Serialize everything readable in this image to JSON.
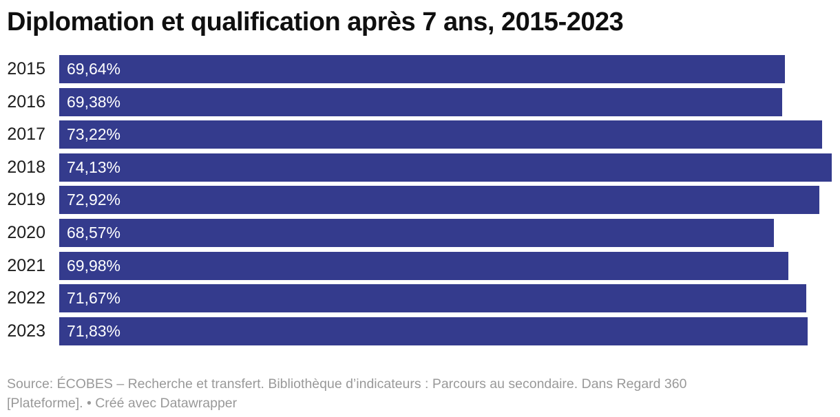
{
  "title": "Diplomation et qualification après 7 ans, 2015-2023",
  "chart_data": {
    "type": "bar",
    "orientation": "horizontal",
    "title": "Diplomation et qualification après 7 ans, 2015-2023",
    "categories": [
      "2015",
      "2016",
      "2017",
      "2018",
      "2019",
      "2020",
      "2021",
      "2022",
      "2023"
    ],
    "values": [
      69.64,
      69.38,
      73.22,
      74.13,
      72.92,
      68.57,
      69.98,
      71.67,
      71.83
    ],
    "value_labels": [
      "69,64%",
      "69,38%",
      "73,22%",
      "74,13%",
      "72,92%",
      "68,57%",
      "69,98%",
      "71,67%",
      "71,83%"
    ],
    "xlabel": "",
    "ylabel": "",
    "xlim": [
      0,
      74.13
    ],
    "grid": false,
    "legend": false,
    "bar_color": "#343b8d",
    "value_label_color": "#ffffff"
  },
  "footer": {
    "lines": [
      "Source: ÉCOBES – Recherche et transfert. Bibliothèque d’indicateurs : Parcours au secondaire. Dans Regard 360",
      "[Plateforme]. • Créé avec Datawrapper"
    ]
  }
}
